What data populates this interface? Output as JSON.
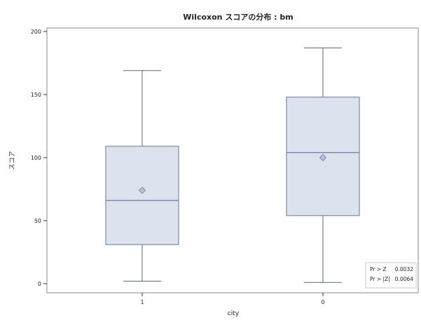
{
  "chart_data": {
    "type": "box",
    "title": "Wilcoxon スコアの分布 : bm",
    "xlabel": "city",
    "ylabel": "スコア",
    "categories": [
      "1",
      "0"
    ],
    "ylim": [
      0,
      200
    ],
    "yticks": [
      0,
      50,
      100,
      150,
      200
    ],
    "grid": false,
    "boxes": [
      {
        "category": "1",
        "whisker_low": 2,
        "q1": 31,
        "median": 66,
        "q3": 109,
        "whisker_high": 169,
        "mean": 74
      },
      {
        "category": "0",
        "whisker_low": 1,
        "q1": 54,
        "median": 104,
        "q3": 148,
        "whisker_high": 187,
        "mean": 100
      }
    ],
    "inset_stats": [
      {
        "label": "Pr > Z",
        "value": "0.0032"
      },
      {
        "label": "Pr > |Z|",
        "value": "0.0064"
      }
    ],
    "colors": {
      "box_fill": "#dde3ee",
      "box_stroke": "#7a8aa8",
      "whisker": "#5a6478",
      "axis": "#333333",
      "frame": "#888888"
    }
  }
}
